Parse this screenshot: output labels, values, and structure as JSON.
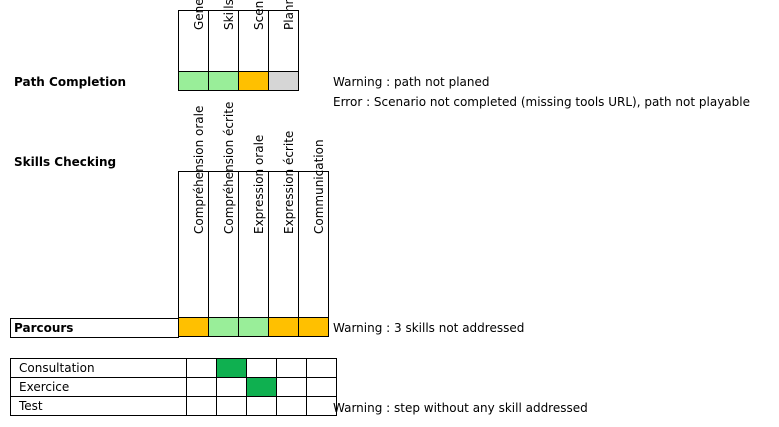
{
  "path_completion": {
    "title": "Path Completion",
    "columns": [
      {
        "label": "General",
        "status": "green"
      },
      {
        "label": "Skills",
        "status": "green"
      },
      {
        "label": "Scenario",
        "status": "orange"
      },
      {
        "label": "Planner",
        "status": "gray"
      }
    ],
    "messages": [
      "Warning : path not planed",
      "Error : Scenario not completed (missing tools URL), path not playable"
    ]
  },
  "skills_checking": {
    "title": "Skills Checking",
    "columns": [
      {
        "label": "Compréhension orale"
      },
      {
        "label": "Compréhension écrite"
      },
      {
        "label": "Expression orale"
      },
      {
        "label": "Expression écrite"
      },
      {
        "label": "Communication"
      }
    ],
    "parcours": {
      "label": "Parcours",
      "statuses": [
        "orange",
        "green",
        "green",
        "orange",
        "orange"
      ],
      "message": "Warning : 3 skills not addressed"
    },
    "steps": [
      {
        "label": "Consultation",
        "cells": [
          "",
          "darkgreen",
          "",
          "",
          ""
        ],
        "message": ""
      },
      {
        "label": "Exercice",
        "cells": [
          "",
          "",
          "darkgreen",
          "",
          ""
        ],
        "message": ""
      },
      {
        "label": "Test",
        "cells": [
          "",
          "",
          "",
          "",
          ""
        ],
        "message": "Warning : step without any skill addressed"
      }
    ]
  },
  "colors": {
    "green": "#99ee99",
    "orange": "#ffc000",
    "gray": "#d6d6d6",
    "darkgreen": "#0fb050"
  }
}
